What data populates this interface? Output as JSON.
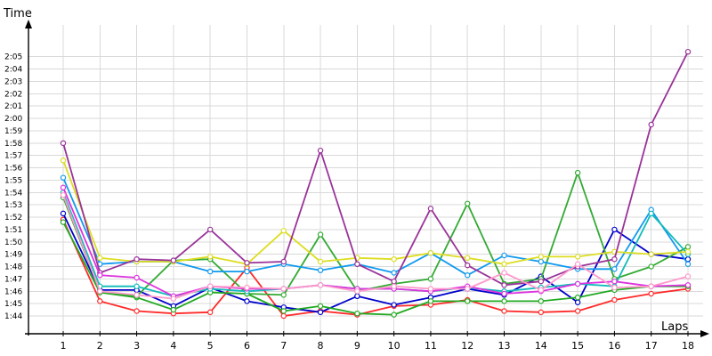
{
  "chart_data": {
    "type": "line",
    "xlabel": "Laps",
    "ylabel": "Time",
    "x": [
      1,
      2,
      3,
      4,
      5,
      6,
      7,
      8,
      9,
      10,
      11,
      12,
      13,
      14,
      15,
      16,
      17,
      18
    ],
    "y_ticks": [
      "1:44",
      "1:45",
      "1:46",
      "1:47",
      "1:48",
      "1:49",
      "1:50",
      "1:51",
      "1:52",
      "1:53",
      "1:54",
      "1:55",
      "1:56",
      "1:57",
      "1:58",
      "1:59",
      "2:00",
      "2:01",
      "2:02",
      "2:03",
      "2:04",
      "2:05"
    ],
    "ylim": [
      103.5,
      126
    ],
    "grid": true,
    "series": [
      {
        "color": "#ff2a2a",
        "values": [
          111.8,
          105.2,
          104.4,
          104.2,
          104.3,
          107.9,
          104.0,
          104.4,
          104.1,
          104.8,
          104.9,
          105.3,
          104.4,
          104.3,
          104.4,
          105.3,
          105.8,
          106.2
        ]
      },
      {
        "color": "#0000cc",
        "values": [
          112.3,
          106.1,
          106.1,
          104.8,
          106.3,
          105.2,
          104.7,
          104.3,
          105.6,
          104.9,
          105.5,
          106.2,
          105.7,
          107.2,
          105.1,
          111.0,
          109.0,
          108.6
        ]
      },
      {
        "color": "#22aa22",
        "values": [
          111.6,
          105.9,
          105.5,
          104.5,
          105.9,
          105.8,
          104.4,
          104.8,
          104.2,
          104.1,
          105.2,
          105.2,
          105.2,
          105.2,
          105.5,
          106.1,
          106.4,
          106.4
        ]
      },
      {
        "color": "#33aa33",
        "values": [
          113.6,
          106.0,
          105.6,
          108.5,
          108.6,
          105.8,
          105.7,
          110.6,
          106.0,
          106.6,
          107.0,
          113.1,
          106.6,
          107.0,
          115.6,
          107.0,
          108.0,
          109.6
        ]
      },
      {
        "color": "#1199ee",
        "values": [
          115.2,
          108.2,
          108.4,
          108.4,
          107.6,
          107.6,
          108.2,
          107.7,
          108.2,
          107.5,
          109.1,
          107.3,
          108.9,
          108.4,
          107.8,
          107.8,
          112.6,
          108.2
        ]
      },
      {
        "color": "#11bbbb",
        "values": [
          114.0,
          106.4,
          106.4,
          105.6,
          106.2,
          106.0,
          106.2,
          106.5,
          106.2,
          106.2,
          106.0,
          106.3,
          106.0,
          106.3,
          106.6,
          106.4,
          112.3,
          109.0
        ]
      },
      {
        "color": "#dddd22",
        "values": [
          116.6,
          108.7,
          108.4,
          108.4,
          108.8,
          108.2,
          110.9,
          108.4,
          108.7,
          108.6,
          109.1,
          108.7,
          108.2,
          108.8,
          108.8,
          109.2,
          109.0,
          109.2
        ]
      },
      {
        "color": "#993399",
        "values": [
          118.0,
          107.5,
          108.6,
          108.5,
          111.0,
          108.3,
          108.4,
          117.4,
          108.2,
          106.8,
          112.7,
          108.1,
          106.5,
          106.8,
          108.0,
          108.6,
          119.5,
          125.4
        ]
      },
      {
        "color": "#dd33dd",
        "values": [
          114.4,
          107.3,
          107.1,
          105.6,
          106.4,
          106.2,
          106.2,
          106.5,
          106.2,
          106.2,
          106.0,
          106.4,
          105.8,
          106.0,
          106.6,
          106.8,
          106.4,
          106.5
        ]
      },
      {
        "color": "#ff99cc",
        "values": [
          113.8,
          106.0,
          105.7,
          105.4,
          106.4,
          106.3,
          106.2,
          106.5,
          106.0,
          106.4,
          106.2,
          106.2,
          107.5,
          106.1,
          108.2,
          106.3,
          106.4,
          107.2
        ]
      }
    ]
  }
}
